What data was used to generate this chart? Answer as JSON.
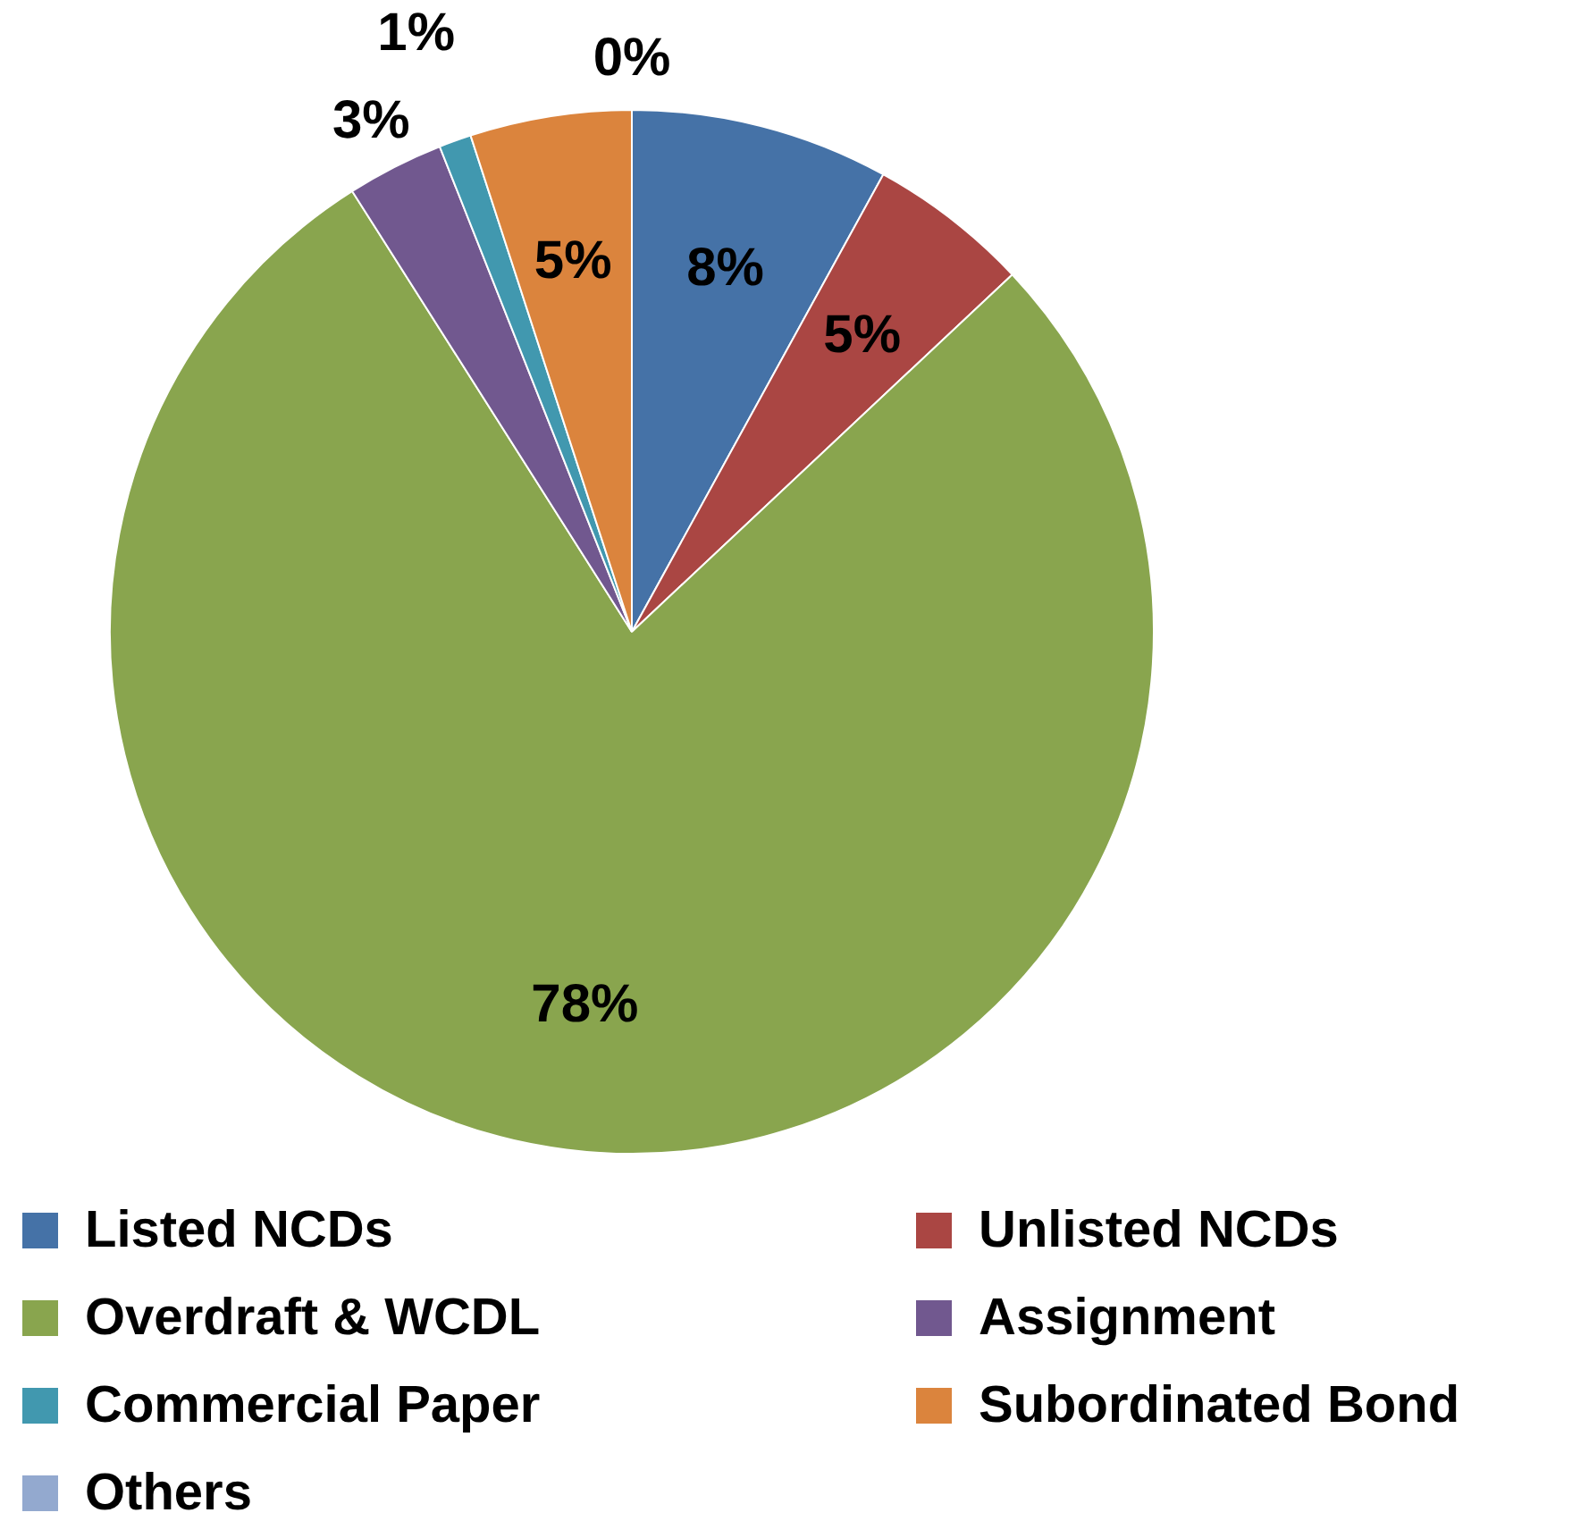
{
  "chart_data": {
    "type": "pie",
    "categories": [
      "Listed NCDs",
      "Unlisted NCDs",
      "Overdraft & WCDL",
      "Assignment",
      "Commercial Paper",
      "Subordinated Bond",
      "Others"
    ],
    "values": [
      8,
      5,
      78,
      3,
      1,
      5,
      0
    ],
    "colors": [
      "#4572a7",
      "#aa4643",
      "#89a54e",
      "#71588f",
      "#4198af",
      "#db843d",
      "#93a9cf"
    ],
    "value_labels": [
      "8%",
      "5%",
      "78%",
      "3%",
      "1%",
      "5%",
      "0%"
    ],
    "legend": "bottom"
  }
}
